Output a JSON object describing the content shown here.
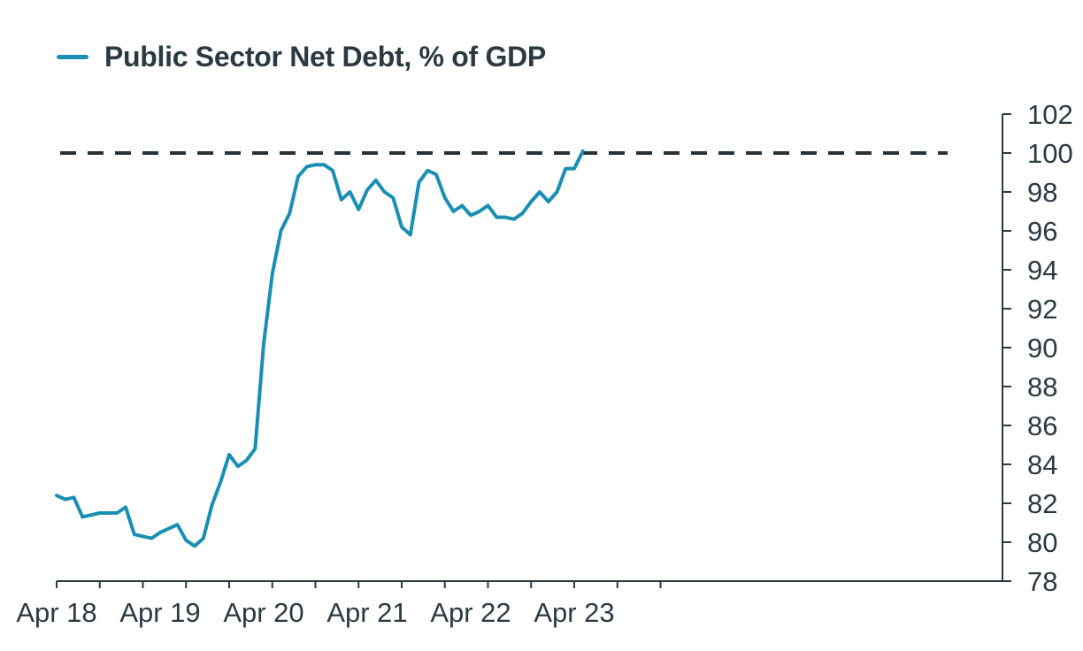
{
  "chart_data": {
    "type": "line",
    "legend_position": "top-left",
    "x_tick_labels": [
      "Apr 18",
      "Apr 19",
      "Apr 20",
      "Apr 21",
      "Apr 22",
      "Apr 23"
    ],
    "ylim": [
      78,
      102
    ],
    "y_ticks": [
      78,
      80,
      82,
      84,
      86,
      88,
      90,
      92,
      94,
      96,
      98,
      100,
      102
    ],
    "y_axis_side": "right",
    "grid": false,
    "reference_line": {
      "y": 100,
      "style": "dashed",
      "color": "#263238"
    },
    "series": [
      {
        "name": "Public Sector Net Debt, % of GDP",
        "color": "#1a8fb3",
        "x": [
          "Apr 18",
          "May 18",
          "Jun 18",
          "Jul 18",
          "Aug 18",
          "Sep 18",
          "Oct 18",
          "Nov 18",
          "Dec 18",
          "Jan 19",
          "Feb 19",
          "Mar 19",
          "Apr 19",
          "May 19",
          "Jun 19",
          "Jul 19",
          "Aug 19",
          "Sep 19",
          "Oct 19",
          "Nov 19",
          "Dec 19",
          "Jan 20",
          "Feb 20",
          "Mar 20",
          "Apr 20",
          "May 20",
          "Jun 20",
          "Jul 20",
          "Aug 20",
          "Sep 20",
          "Oct 20",
          "Nov 20",
          "Dec 20",
          "Jan 21",
          "Feb 21",
          "Mar 21",
          "Apr 21",
          "May 21",
          "Jun 21",
          "Jul 21",
          "Aug 21",
          "Sep 21",
          "Oct 21",
          "Nov 21",
          "Dec 21",
          "Jan 22",
          "Feb 22",
          "Mar 22",
          "Apr 22",
          "May 22",
          "Jun 22",
          "Jul 22",
          "Aug 22",
          "Sep 22",
          "Oct 22",
          "Nov 22",
          "Dec 22",
          "Jan 23",
          "Feb 23",
          "Mar 23",
          "Apr 23",
          "May 23"
        ],
        "values": [
          82.4,
          82.2,
          82.3,
          81.3,
          81.4,
          81.5,
          81.5,
          81.5,
          81.8,
          80.4,
          80.3,
          80.2,
          80.5,
          80.7,
          80.9,
          80.1,
          79.8,
          80.2,
          81.9,
          83.1,
          84.5,
          83.9,
          84.2,
          84.8,
          90.2,
          93.8,
          96.0,
          96.9,
          98.8,
          99.3,
          99.4,
          99.4,
          99.1,
          97.6,
          98.0,
          97.1,
          98.1,
          98.6,
          98.0,
          97.7,
          96.2,
          95.8,
          98.5,
          99.1,
          98.9,
          97.7,
          97.0,
          97.3,
          96.8,
          97.0,
          97.3,
          96.7,
          96.7,
          96.6,
          96.9,
          97.5,
          98.0,
          97.5,
          98.0,
          99.2,
          99.2,
          100.1
        ]
      }
    ]
  }
}
